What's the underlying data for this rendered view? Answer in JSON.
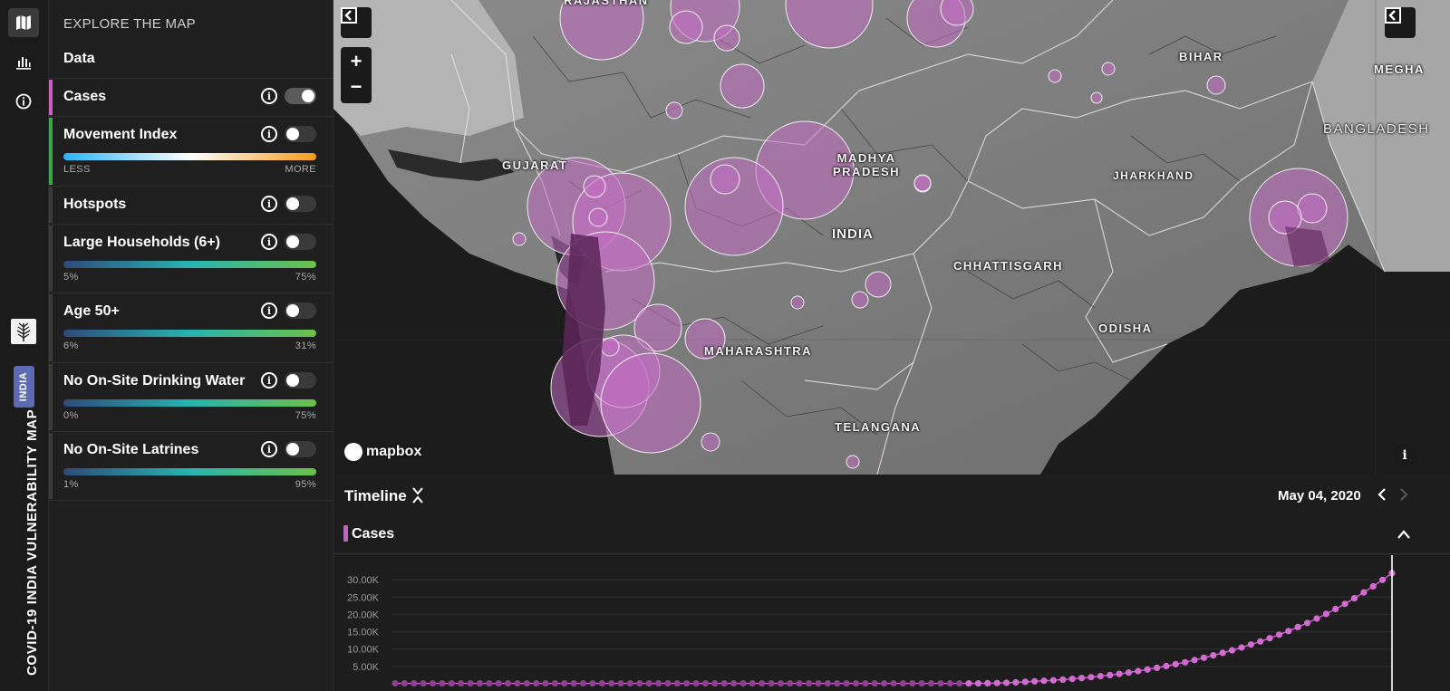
{
  "app": {
    "title": "COVID-19 INDIA VULNERABILITY MAP",
    "country_badge": "INDIA"
  },
  "rail": {
    "items": [
      {
        "icon": "map-icon",
        "active": true
      },
      {
        "icon": "bar-chart-icon",
        "active": false
      },
      {
        "icon": "info-icon",
        "active": false
      }
    ]
  },
  "panel": {
    "heading": "EXPLORE THE MAP",
    "subheading": "Data",
    "layers": [
      {
        "name": "Cases",
        "enabled": true,
        "accent": "#c75fc6"
      },
      {
        "name": "Movement Index",
        "enabled": false,
        "accent": "#3aa64a",
        "legend_min": "LESS",
        "legend_max": "MORE",
        "ramp": [
          "#29b6f6",
          "#ffffff",
          "#f59c1a"
        ]
      },
      {
        "name": "Hotspots",
        "enabled": false,
        "accent": "#3a3a3a"
      },
      {
        "name": "Large Households (6+)",
        "enabled": false,
        "accent": "#3a3a3a",
        "legend_min": "5%",
        "legend_max": "75%",
        "ramp": [
          "#2f4a7a",
          "#26b4b0",
          "#6cc04a"
        ]
      },
      {
        "name": "Age 50+",
        "enabled": false,
        "accent": "#3a3a3a",
        "legend_min": "6%",
        "legend_max": "31%",
        "ramp": [
          "#2f4a7a",
          "#26b4b0",
          "#6cc04a"
        ]
      },
      {
        "name": "No On-Site Drinking Water",
        "enabled": false,
        "accent": "#3a3a3a",
        "legend_min": "0%",
        "legend_max": "75%",
        "ramp": [
          "#2f4a7a",
          "#26b4b0",
          "#6cc04a"
        ]
      },
      {
        "name": "No On-Site Latrines",
        "enabled": false,
        "accent": "#3a3a3a",
        "legend_min": "1%",
        "legend_max": "95%",
        "ramp": [
          "#2f4a7a",
          "#26b4b0",
          "#6cc04a"
        ]
      }
    ],
    "info_glyph": "i"
  },
  "map": {
    "zoom_in": "+",
    "zoom_out": "−",
    "attribution_logo": "mapbox",
    "info_glyph": "i",
    "labels": [
      {
        "id": "gujarat",
        "text": "GUJARAT"
      },
      {
        "id": "madhya-pradesh",
        "text": "MADHYA\nPRADESH"
      },
      {
        "id": "india",
        "text": "INDIA"
      },
      {
        "id": "bihar",
        "text": "BIHAR"
      },
      {
        "id": "jharkhand",
        "text": "JHARKHAND"
      },
      {
        "id": "chhattisgarh",
        "text": "CHHATTISGARH"
      },
      {
        "id": "odisha",
        "text": "ODISHA"
      },
      {
        "id": "maharashtra",
        "text": "MAHARASHTRA"
      },
      {
        "id": "telangana",
        "text": "TELANGANA"
      },
      {
        "id": "bangladesh",
        "text": "BANGLADESH"
      },
      {
        "id": "meghalaya",
        "text": "MEGHA"
      },
      {
        "id": "rajasthan",
        "text": "RAJASTHAN"
      }
    ],
    "bubble_color": "#c36ec2"
  },
  "timeline": {
    "title": "Timeline",
    "date": "May 04, 2020",
    "series_label": "Cases",
    "series_color": "#c75fc6"
  },
  "chart_data": {
    "type": "line",
    "title": "",
    "xlabel": "",
    "ylabel": "",
    "y_ticks": [
      "5.00K",
      "10.00K",
      "15.00K",
      "20.00K",
      "25.00K",
      "30.00K"
    ],
    "ylim": [
      0,
      35000
    ],
    "series": [
      {
        "name": "Cases",
        "values": [
          100,
          100,
          100,
          100,
          100,
          100,
          100,
          100,
          100,
          100,
          100,
          100,
          100,
          100,
          100,
          100,
          100,
          100,
          100,
          100,
          100,
          100,
          100,
          100,
          100,
          100,
          100,
          100,
          100,
          100,
          100,
          100,
          100,
          100,
          100,
          100,
          100,
          100,
          100,
          100,
          100,
          100,
          100,
          100,
          100,
          100,
          100,
          100,
          100,
          100,
          100,
          100,
          100,
          100,
          100,
          100,
          100,
          100,
          100,
          100,
          100,
          100,
          100,
          150,
          200,
          300,
          400,
          550,
          700,
          850,
          1000,
          1200,
          1400,
          1650,
          1900,
          2200,
          2500,
          2850,
          3250,
          3650,
          4100,
          4600,
          5100,
          5650,
          6200,
          6850,
          7500,
          8200,
          8900,
          9650,
          10450,
          11300,
          12200,
          13150,
          14150,
          15200,
          16350,
          17550,
          18800,
          20150,
          21550,
          23050,
          24650,
          26350,
          28100,
          29950,
          31900
        ]
      }
    ]
  }
}
